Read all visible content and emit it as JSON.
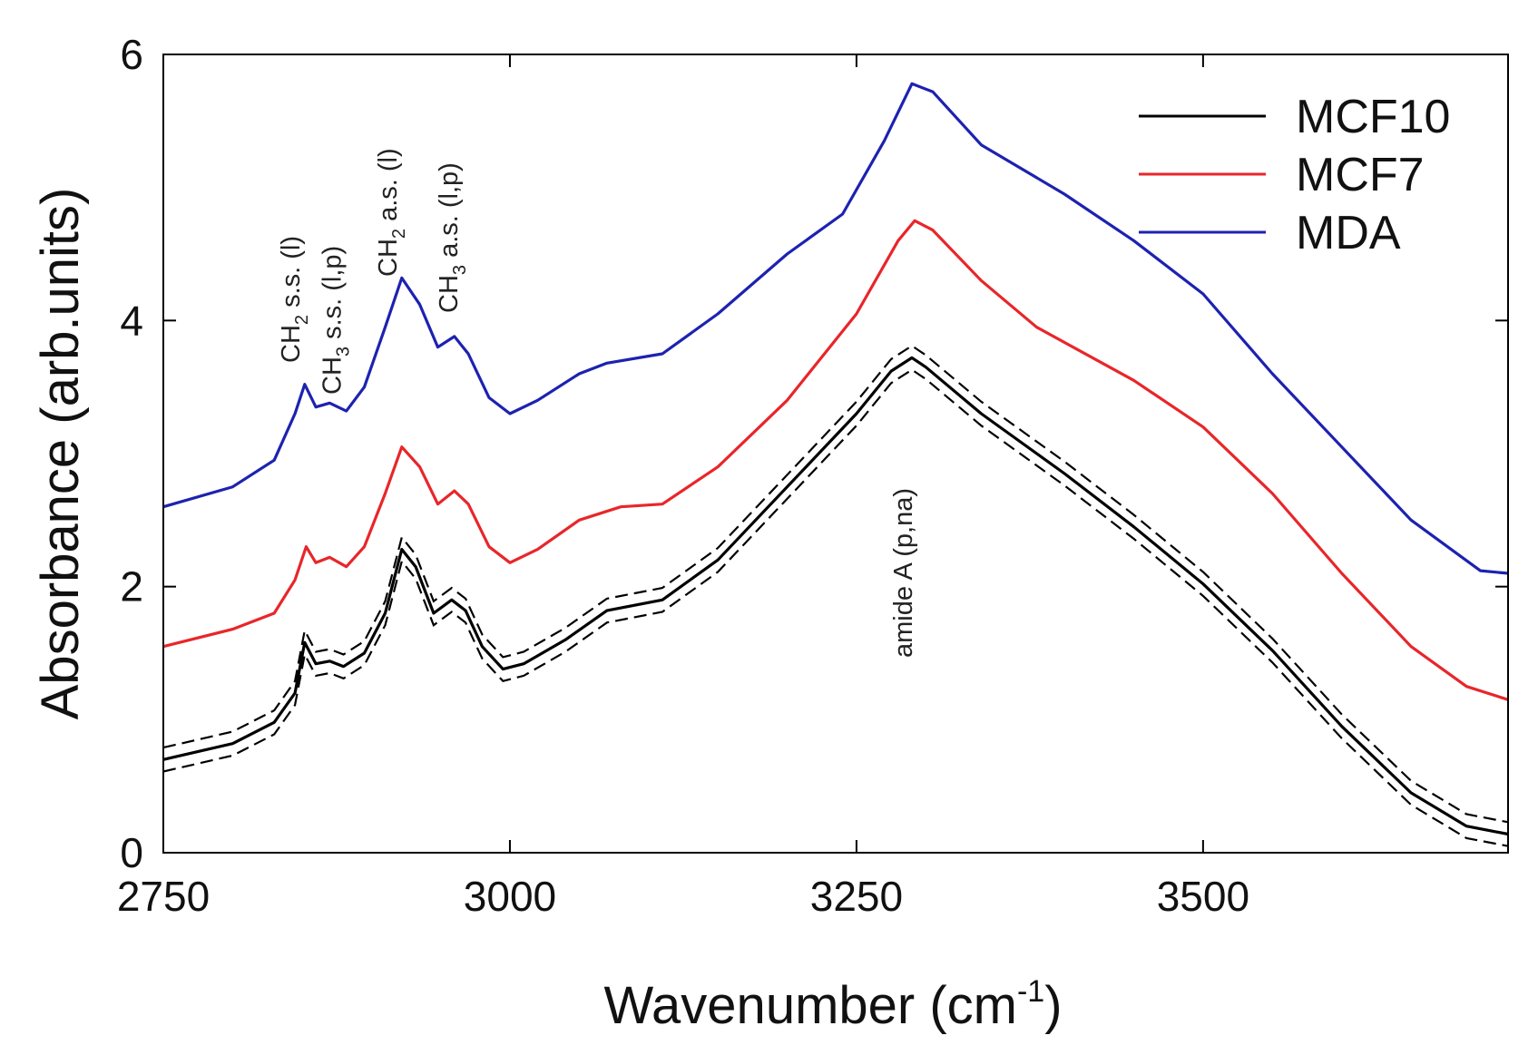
{
  "chart_data": {
    "type": "line",
    "title": "",
    "xlabel": "Wavenumber (cm",
    "xlabel_sup": "-1",
    "xlabel_close": ")",
    "ylabel": "Absorbance (arb.units)",
    "xlim": [
      2750,
      3720
    ],
    "ylim": [
      0,
      6
    ],
    "xticks": [
      2750,
      3000,
      3250,
      3500
    ],
    "yticks": [
      0,
      2,
      4,
      6
    ],
    "grid": false,
    "legend_position": "top-right",
    "series": [
      {
        "name": "MCF10",
        "color": "#000000",
        "band": 0.09,
        "points": [
          [
            2750,
            0.7
          ],
          [
            2800,
            0.82
          ],
          [
            2830,
            0.98
          ],
          [
            2845,
            1.2
          ],
          [
            2852,
            1.58
          ],
          [
            2860,
            1.42
          ],
          [
            2870,
            1.44
          ],
          [
            2880,
            1.4
          ],
          [
            2895,
            1.5
          ],
          [
            2910,
            1.8
          ],
          [
            2922,
            2.28
          ],
          [
            2932,
            2.15
          ],
          [
            2945,
            1.8
          ],
          [
            2958,
            1.9
          ],
          [
            2968,
            1.82
          ],
          [
            2980,
            1.55
          ],
          [
            2995,
            1.38
          ],
          [
            3010,
            1.42
          ],
          [
            3040,
            1.6
          ],
          [
            3070,
            1.82
          ],
          [
            3110,
            1.9
          ],
          [
            3150,
            2.2
          ],
          [
            3200,
            2.75
          ],
          [
            3250,
            3.3
          ],
          [
            3275,
            3.62
          ],
          [
            3290,
            3.72
          ],
          [
            3300,
            3.65
          ],
          [
            3340,
            3.3
          ],
          [
            3400,
            2.85
          ],
          [
            3450,
            2.45
          ],
          [
            3500,
            2.02
          ],
          [
            3550,
            1.52
          ],
          [
            3600,
            0.95
          ],
          [
            3650,
            0.45
          ],
          [
            3690,
            0.2
          ],
          [
            3720,
            0.14
          ]
        ]
      },
      {
        "name": "MCF7",
        "color": "#e8262a",
        "points": [
          [
            2750,
            1.55
          ],
          [
            2800,
            1.68
          ],
          [
            2830,
            1.8
          ],
          [
            2845,
            2.05
          ],
          [
            2853,
            2.3
          ],
          [
            2860,
            2.18
          ],
          [
            2870,
            2.22
          ],
          [
            2882,
            2.15
          ],
          [
            2895,
            2.3
          ],
          [
            2910,
            2.7
          ],
          [
            2922,
            3.05
          ],
          [
            2935,
            2.9
          ],
          [
            2948,
            2.62
          ],
          [
            2960,
            2.72
          ],
          [
            2970,
            2.62
          ],
          [
            2985,
            2.3
          ],
          [
            3000,
            2.18
          ],
          [
            3020,
            2.28
          ],
          [
            3050,
            2.5
          ],
          [
            3080,
            2.6
          ],
          [
            3110,
            2.62
          ],
          [
            3150,
            2.9
          ],
          [
            3200,
            3.4
          ],
          [
            3250,
            4.05
          ],
          [
            3280,
            4.6
          ],
          [
            3292,
            4.75
          ],
          [
            3305,
            4.68
          ],
          [
            3340,
            4.3
          ],
          [
            3380,
            3.95
          ],
          [
            3450,
            3.55
          ],
          [
            3500,
            3.2
          ],
          [
            3550,
            2.7
          ],
          [
            3600,
            2.1
          ],
          [
            3650,
            1.55
          ],
          [
            3690,
            1.25
          ],
          [
            3720,
            1.15
          ]
        ]
      },
      {
        "name": "MDA",
        "color": "#1d22b0",
        "points": [
          [
            2750,
            2.6
          ],
          [
            2800,
            2.75
          ],
          [
            2830,
            2.95
          ],
          [
            2845,
            3.3
          ],
          [
            2852,
            3.52
          ],
          [
            2860,
            3.35
          ],
          [
            2870,
            3.38
          ],
          [
            2882,
            3.32
          ],
          [
            2895,
            3.5
          ],
          [
            2910,
            3.95
          ],
          [
            2922,
            4.32
          ],
          [
            2935,
            4.12
          ],
          [
            2948,
            3.8
          ],
          [
            2960,
            3.88
          ],
          [
            2970,
            3.75
          ],
          [
            2985,
            3.42
          ],
          [
            3000,
            3.3
          ],
          [
            3020,
            3.4
          ],
          [
            3050,
            3.6
          ],
          [
            3070,
            3.68
          ],
          [
            3110,
            3.75
          ],
          [
            3150,
            4.05
          ],
          [
            3200,
            4.5
          ],
          [
            3240,
            4.8
          ],
          [
            3270,
            5.35
          ],
          [
            3290,
            5.78
          ],
          [
            3305,
            5.72
          ],
          [
            3340,
            5.32
          ],
          [
            3400,
            4.95
          ],
          [
            3450,
            4.6
          ],
          [
            3500,
            4.2
          ],
          [
            3550,
            3.6
          ],
          [
            3600,
            3.05
          ],
          [
            3650,
            2.5
          ],
          [
            3700,
            2.12
          ],
          [
            3720,
            2.1
          ]
        ]
      }
    ],
    "annotations": [
      {
        "base": "CH",
        "sub": "2",
        "rest": " s.s. (l)",
        "x": 2850
      },
      {
        "base": "CH",
        "sub": "3",
        "rest": " s.s. (l,p)",
        "x": 2878
      },
      {
        "base": "CH",
        "sub": "2",
        "rest": " a.s. (l)",
        "x": 2922
      },
      {
        "base": "CH",
        "sub": "3",
        "rest": " a.s. (l,p)",
        "x": 2962
      },
      {
        "base": "amide A (p,na)",
        "sub": "",
        "rest": "",
        "x": 3290
      }
    ]
  }
}
